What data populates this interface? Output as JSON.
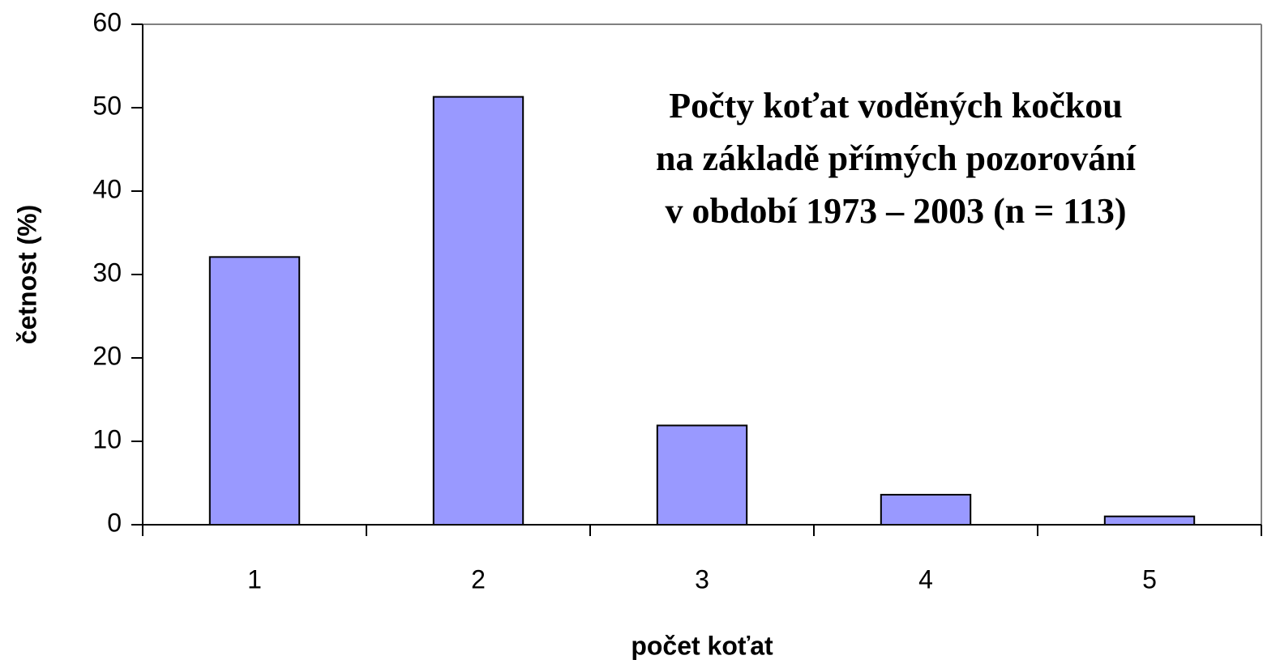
{
  "chart_data": {
    "type": "bar",
    "title": [
      "Počty koťat voděných kočkou",
      "na základě přímých pozorování",
      "v období 1973 – 2003 (n = 113)"
    ],
    "xlabel": "počet koťat",
    "ylabel": "četnost (%)",
    "categories": [
      "1",
      "2",
      "3",
      "4",
      "5"
    ],
    "values": [
      32.1,
      51.3,
      11.9,
      3.6,
      1.0
    ],
    "color": "#9999ff",
    "ylim": [
      0,
      60
    ],
    "yticks": [
      0,
      10,
      20,
      30,
      40,
      50,
      60
    ],
    "grid": false
  }
}
